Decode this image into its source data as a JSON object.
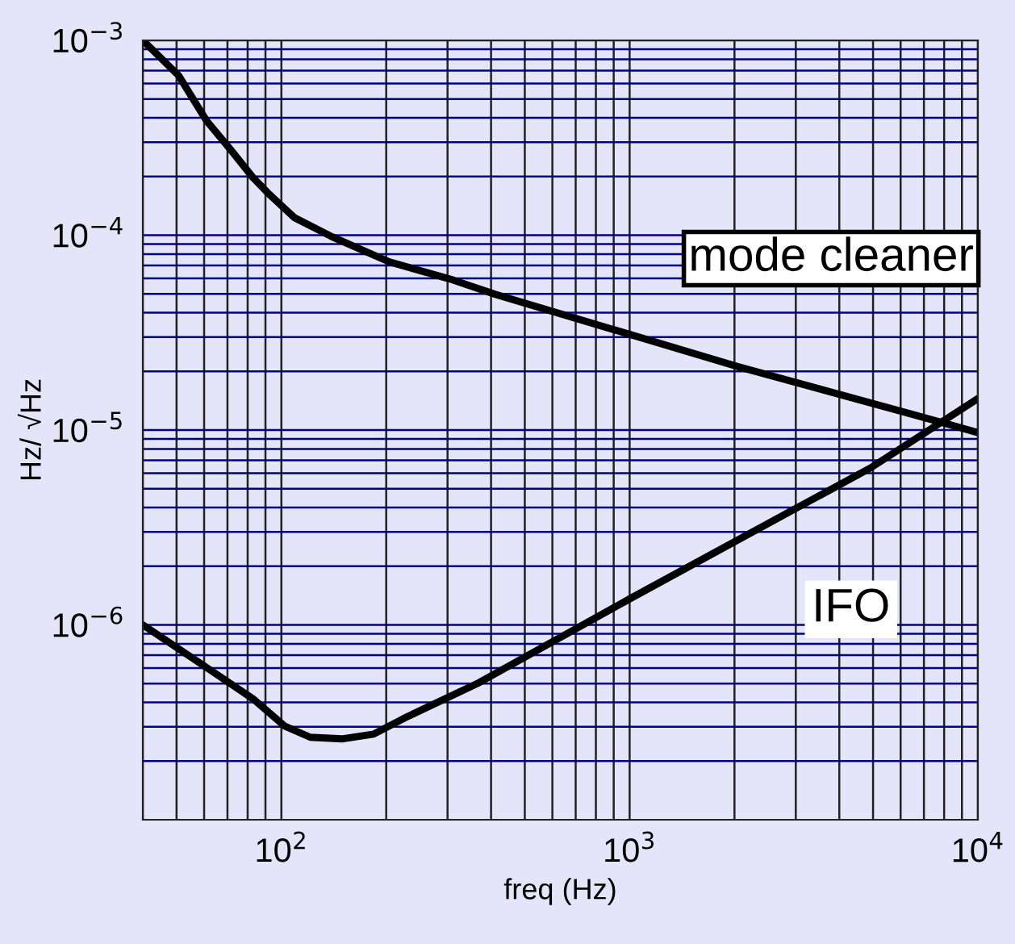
{
  "chart_data": {
    "type": "line",
    "xlabel": "freq (Hz)",
    "ylabel": "Hz/ √Hz",
    "log": "xy",
    "grid": true,
    "legend": false,
    "marker": "none",
    "line_style": "solid",
    "xlim": [
      40,
      10000
    ],
    "ylim": [
      1e-07,
      0.001
    ],
    "xticks": [
      {
        "value": 100,
        "label": "10$^{2}$"
      },
      {
        "value": 1000,
        "label": "10$^{3}$"
      },
      {
        "value": 10000,
        "label": "10$^{4}$"
      }
    ],
    "yticks": [
      {
        "value": 1e-06,
        "label": "10$^{−6}$"
      },
      {
        "value": 1e-05,
        "label": "10$^{−5}$"
      },
      {
        "value": 0.0001,
        "label": "10$^{−4}$"
      },
      {
        "value": 0.001,
        "label": "10$^{−3}$"
      }
    ],
    "series": [
      {
        "name": "mode cleaner",
        "color": "#000000",
        "x": [
          40,
          50.7,
          61,
          71.6,
          82.8,
          92,
          109,
          140,
          204,
          310,
          411,
          2040,
          7940,
          10000
        ],
        "values": [
          0.001,
          0.00066,
          0.000386,
          0.000274,
          0.000198,
          0.000163,
          0.000123,
          9.8e-05,
          7.3e-05,
          5.9e-05,
          4.97e-05,
          2.12e-05,
          1.09e-05,
          9.7e-06
        ]
      },
      {
        "name": "IFO",
        "color": "#000000",
        "x": [
          40,
          60.5,
          82.8,
          102,
          121,
          149,
          184,
          226,
          370,
          1000,
          3000,
          4910,
          10000
        ],
        "values": [
          1e-06,
          6.1e-07,
          4.18e-07,
          3.03e-07,
          2.65e-07,
          2.6e-07,
          2.75e-07,
          3.33e-07,
          5.06e-07,
          1.36e-06,
          3.96e-06,
          6.38e-06,
          1.45e-05
        ]
      }
    ]
  }
}
